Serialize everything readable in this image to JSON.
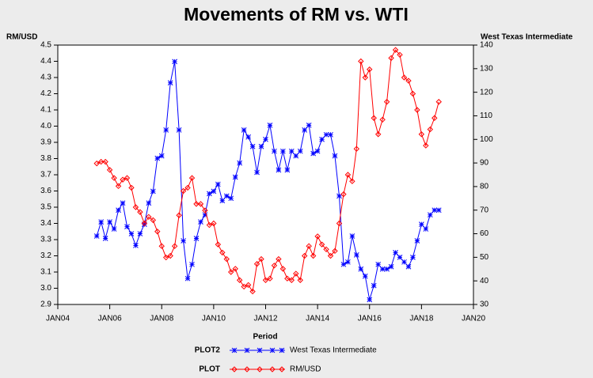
{
  "chart_data": {
    "type": "line",
    "title": "Movements of RM vs. WTI",
    "y_label": "RM/USD",
    "y2_label": "West Texas Intermediate",
    "x_label": "Period",
    "x": [
      "2005-07",
      "2005-09",
      "2005-11",
      "2006-01",
      "2006-03",
      "2006-05",
      "2006-07",
      "2006-09",
      "2006-11",
      "2007-01",
      "2007-03",
      "2007-05",
      "2007-07",
      "2007-09",
      "2007-11",
      "2008-01",
      "2008-03",
      "2008-05",
      "2008-07",
      "2008-09",
      "2008-11",
      "2009-01",
      "2009-03",
      "2009-05",
      "2009-07",
      "2009-09",
      "2009-11",
      "2010-01",
      "2010-03",
      "2010-05",
      "2010-07",
      "2010-09",
      "2010-11",
      "2011-01",
      "2011-03",
      "2011-05",
      "2011-07",
      "2011-09",
      "2011-11",
      "2012-01",
      "2012-03",
      "2012-05",
      "2012-07",
      "2012-09",
      "2012-11",
      "2013-01",
      "2013-03",
      "2013-05",
      "2013-07",
      "2013-09",
      "2013-11",
      "2014-01",
      "2014-03",
      "2014-05",
      "2014-07",
      "2014-09",
      "2014-11",
      "2015-01",
      "2015-03",
      "2015-05",
      "2015-07",
      "2015-09",
      "2015-11",
      "2016-01",
      "2016-03",
      "2016-05",
      "2016-07",
      "2016-09",
      "2016-11",
      "2017-01",
      "2017-03",
      "2017-05",
      "2017-07",
      "2017-09",
      "2017-11",
      "2018-01",
      "2018-03",
      "2018-05",
      "2018-07",
      "2018-09"
    ],
    "series": [
      {
        "name": "West Texas Intermediate",
        "legend_group": "PLOT2",
        "color": "#0000ff",
        "marker": "star",
        "axis": "y2",
        "values": [
          59,
          65,
          58,
          65,
          62,
          70,
          73,
          63,
          60,
          55,
          60,
          64,
          73,
          78,
          92,
          93,
          104,
          124,
          133,
          104,
          57,
          41,
          47,
          58,
          65,
          68,
          77,
          78,
          81,
          74,
          76,
          75,
          84,
          90,
          104,
          101,
          97,
          86,
          97,
          100,
          106,
          95,
          87,
          95,
          87,
          95,
          93,
          95,
          104,
          106,
          94,
          95,
          100,
          102,
          102,
          93,
          76,
          47,
          48,
          59,
          51,
          45,
          42,
          32,
          38,
          47,
          45,
          45,
          46,
          52,
          50,
          48,
          46,
          50,
          57,
          64,
          62,
          68,
          70,
          70
        ]
      },
      {
        "name": "RM/USD",
        "legend_group": "PLOT",
        "color": "#ff0000",
        "marker": "diamond",
        "values": [
          3.77,
          3.78,
          3.78,
          3.73,
          3.68,
          3.63,
          3.67,
          3.68,
          3.62,
          3.5,
          3.47,
          3.4,
          3.44,
          3.42,
          3.35,
          3.26,
          3.19,
          3.2,
          3.26,
          3.45,
          3.6,
          3.62,
          3.68,
          3.52,
          3.52,
          3.48,
          3.39,
          3.4,
          3.27,
          3.22,
          3.18,
          3.1,
          3.12,
          3.05,
          3.01,
          3.02,
          2.98,
          3.15,
          3.18,
          3.05,
          3.06,
          3.14,
          3.18,
          3.12,
          3.06,
          3.05,
          3.09,
          3.05,
          3.2,
          3.26,
          3.2,
          3.32,
          3.27,
          3.24,
          3.2,
          3.23,
          3.4,
          3.58,
          3.7,
          3.66,
          3.86,
          4.4,
          4.3,
          4.35,
          4.05,
          3.95,
          4.04,
          4.15,
          4.42,
          4.47,
          4.44,
          4.3,
          4.28,
          4.2,
          4.1,
          3.95,
          3.88,
          3.98,
          4.05,
          4.15
        ]
      }
    ],
    "xlim": [
      "2004-01",
      "2020-01"
    ],
    "xticks": [
      {
        "value": "2004-01",
        "label": "JAN04"
      },
      {
        "value": "2006-01",
        "label": "JAN06"
      },
      {
        "value": "2008-01",
        "label": "JAN08"
      },
      {
        "value": "2010-01",
        "label": "JAN10"
      },
      {
        "value": "2012-01",
        "label": "JAN12"
      },
      {
        "value": "2014-01",
        "label": "JAN14"
      },
      {
        "value": "2016-01",
        "label": "JAN16"
      },
      {
        "value": "2018-01",
        "label": "JAN18"
      },
      {
        "value": "2020-01",
        "label": "JAN20"
      }
    ],
    "ylim": [
      2.9,
      4.5
    ],
    "yticks": [
      4.5,
      4.4,
      4.3,
      4.2,
      4.1,
      {
        "value": 4,
        "label": "4.0"
      },
      3.9,
      3.8,
      3.7,
      3.6,
      3.5,
      3.4,
      3.3,
      3.2,
      3.1,
      {
        "value": 3,
        "label": "3.0"
      },
      2.9
    ],
    "y2lim": [
      30,
      140
    ],
    "y2ticks": [
      140,
      130,
      120,
      110,
      100,
      90,
      80,
      70,
      60,
      50,
      40,
      30
    ]
  }
}
